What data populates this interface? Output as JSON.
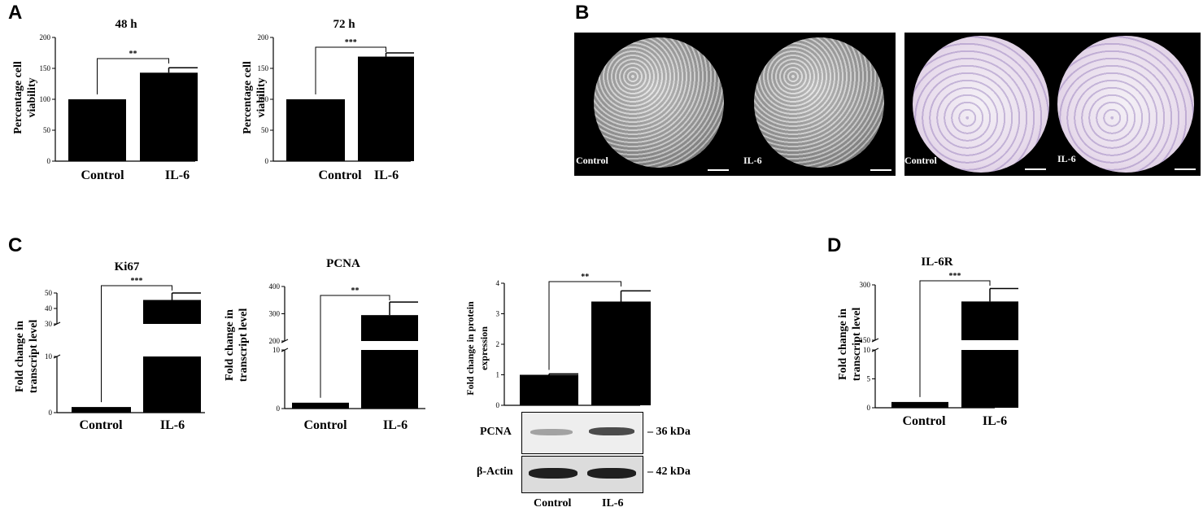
{
  "panels": {
    "a": "A",
    "b": "B",
    "c": "C",
    "d": "D"
  },
  "colors": {
    "bar": "#000000",
    "background": "#ffffff",
    "purple_stain": "#8a6fb5"
  },
  "chart_data": [
    {
      "id": "A-48h",
      "type": "bar",
      "title": "48 h",
      "ylabel": "Percentage cell viability",
      "categories": [
        "Control",
        "IL-6"
      ],
      "values": [
        100,
        143
      ],
      "errors": [
        0,
        8
      ],
      "ylim": [
        0,
        200
      ],
      "yticks": [
        "0",
        "50",
        "100",
        "150",
        "200"
      ],
      "significance": "**",
      "grid": false
    },
    {
      "id": "A-72h",
      "type": "bar",
      "title": "72 h",
      "ylabel": "Percentage cell viability",
      "categories": [
        "Control",
        "IL-6"
      ],
      "values": [
        100,
        169
      ],
      "errors": [
        0,
        6
      ],
      "ylim": [
        0,
        200
      ],
      "yticks": [
        "0",
        "50",
        "100",
        "150",
        "200"
      ],
      "significance": "***",
      "grid": false
    },
    {
      "id": "C-Ki67",
      "type": "bar",
      "title": "Ki67",
      "ylabel": "Fold change in transcript level",
      "categories": [
        "Control",
        "IL-6"
      ],
      "values": [
        1,
        45.5
      ],
      "errors": [
        0,
        4.5
      ],
      "axis_break": {
        "lower": [
          0,
          10
        ],
        "upper": [
          30,
          50
        ]
      },
      "yticks": [
        "0",
        "10",
        "30",
        "40",
        "50"
      ],
      "significance": "***",
      "grid": false
    },
    {
      "id": "C-PCNA",
      "type": "bar",
      "title": "PCNA",
      "ylabel": "Fold change in transcript level",
      "categories": [
        "Control",
        "IL-6"
      ],
      "values": [
        1,
        295
      ],
      "errors": [
        0,
        48
      ],
      "axis_break": {
        "lower": [
          0,
          10
        ],
        "upper": [
          200,
          400
        ]
      },
      "yticks": [
        "0",
        "10",
        "200",
        "300",
        "400"
      ],
      "significance": "**",
      "grid": false
    },
    {
      "id": "C-PCNA-protein",
      "type": "bar",
      "title": "",
      "ylabel": "Fold change in protein expression",
      "categories": [
        "Control",
        "IL-6"
      ],
      "values": [
        1,
        3.4
      ],
      "errors": [
        0.03,
        0.35
      ],
      "ylim": [
        0,
        4
      ],
      "yticks": [
        "0",
        "1",
        "2",
        "3",
        "4"
      ],
      "significance": "**",
      "grid": false
    },
    {
      "id": "D-IL6R",
      "type": "bar",
      "title": "IL-6R",
      "ylabel": "Fold change in transcript level",
      "categories": [
        "Control",
        "IL-6"
      ],
      "values": [
        1,
        255
      ],
      "errors": [
        0,
        35
      ],
      "axis_break": {
        "lower": [
          0,
          10
        ],
        "upper": [
          150,
          300
        ]
      },
      "yticks": [
        "0",
        "5",
        "10",
        "150",
        "300"
      ],
      "significance": "***",
      "grid": false
    }
  ],
  "micrographs": {
    "left": {
      "control": "Control",
      "il6": "IL-6"
    },
    "right": {
      "control": "Control",
      "il6": "IL-6"
    }
  },
  "western_blot": {
    "rows": [
      {
        "protein": "PCNA",
        "size": "36 kDa"
      },
      {
        "protein": "β-Actin",
        "size": "42 kDa"
      }
    ],
    "lanes": [
      "Control",
      "IL-6"
    ],
    "band_intensity": {
      "PCNA": [
        0.35,
        0.75
      ],
      "β-Actin": [
        0.95,
        0.95
      ]
    }
  }
}
